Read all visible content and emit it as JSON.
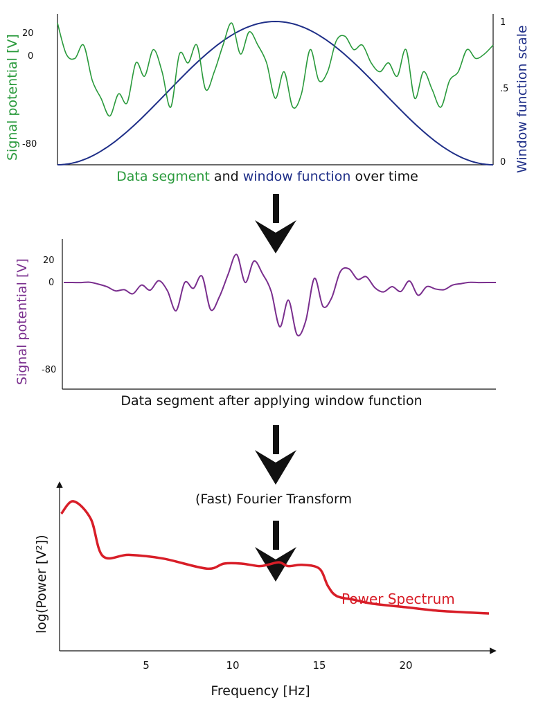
{
  "colors": {
    "green": "#2a9a3c",
    "blue": "#1f2f88",
    "purple": "#7a2f8e",
    "red": "#d81e28",
    "black": "#111111"
  },
  "panel1": {
    "ylabel_left": "Signal potential [V]",
    "ylabel_right": "Window function scale",
    "left_ticks": [
      "20",
      "0",
      "-80"
    ],
    "right_ticks": [
      "1",
      ".5",
      "0"
    ],
    "caption_part1": "Data segment",
    "caption_part2": " and ",
    "caption_part3": "window function",
    "caption_part4": " over time"
  },
  "panel2": {
    "ylabel": "Signal potential [V]",
    "ticks": [
      "20",
      "0",
      "-80"
    ],
    "caption": "Data segment after applying window function"
  },
  "fft_label": "(Fast) Fourier Transform",
  "panel3": {
    "ylabel": "log(Power [V²])",
    "xlabel": "Frequency [Hz]",
    "xticks": [
      "5",
      "10",
      "15",
      "20"
    ],
    "series_label": "Power Spectrum"
  },
  "chart_data": [
    {
      "type": "line",
      "name": "signal",
      "yticks": [
        20,
        0,
        -80
      ],
      "x": [
        0,
        0.02,
        0.04,
        0.06,
        0.08,
        0.1,
        0.12,
        0.14,
        0.16,
        0.18,
        0.2,
        0.22,
        0.24,
        0.26,
        0.28,
        0.3,
        0.32,
        0.34,
        0.36,
        0.38,
        0.4,
        0.42,
        0.44,
        0.46,
        0.48,
        0.5,
        0.52,
        0.54,
        0.56,
        0.58,
        0.6,
        0.62,
        0.64,
        0.66,
        0.68,
        0.7,
        0.72,
        0.74,
        0.76,
        0.78,
        0.8,
        0.82,
        0.84,
        0.86,
        0.88,
        0.9,
        0.92,
        0.94,
        0.96,
        0.98,
        1.0
      ],
      "values": [
        35,
        0,
        -5,
        10,
        -30,
        -50,
        -70,
        -45,
        -55,
        -10,
        -25,
        5,
        -20,
        -60,
        0,
        -10,
        10,
        -40,
        -20,
        10,
        35,
        0,
        25,
        10,
        -10,
        -50,
        -20,
        -60,
        -45,
        5,
        -30,
        -20,
        15,
        20,
        5,
        10,
        -10,
        -20,
        -10,
        -25,
        5,
        -50,
        -20,
        -40,
        -60,
        -30,
        -20,
        5,
        -5,
        0,
        10
      ]
    },
    {
      "type": "line",
      "name": "window",
      "yticks": [
        1,
        0.5,
        0
      ]
    },
    {
      "type": "line",
      "name": "windowed",
      "yticks": [
        20,
        0,
        -80
      ]
    },
    {
      "type": "line",
      "name": "power-spectrum",
      "xticks": [
        5,
        10,
        15,
        20
      ],
      "x": [
        0.1,
        0.8,
        1.8,
        2.5,
        4,
        6,
        8.5,
        9.5,
        10.5,
        11.5,
        12,
        12.7,
        13.2,
        14,
        15,
        15.5,
        16,
        17,
        18,
        20,
        22,
        24.8
      ],
      "values": [
        5.5,
        6.0,
        5.3,
        3.8,
        3.85,
        3.7,
        3.3,
        3.5,
        3.5,
        3.4,
        3.45,
        3.55,
        3.4,
        3.45,
        3.3,
        2.6,
        2.2,
        2.05,
        1.9,
        1.75,
        1.6,
        1.5
      ]
    }
  ]
}
